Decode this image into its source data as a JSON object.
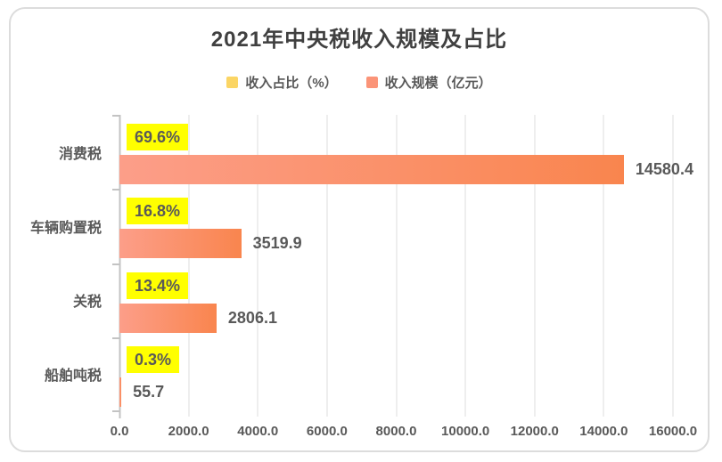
{
  "chart_data": {
    "type": "bar",
    "orientation": "horizontal",
    "title": "2021年中央税收入规模及占比",
    "categories": [
      "消费税",
      "车辆购置税",
      "关税",
      "船舶吨税"
    ],
    "series": [
      {
        "name": "收入占比（%）",
        "values": [
          69.6,
          16.8,
          13.4,
          0.3
        ],
        "labels": [
          "69.6%",
          "16.8%",
          "13.4%",
          "0.3%"
        ],
        "swatch_color": "#fbd564",
        "label_bg": "#ffff00"
      },
      {
        "name": "收入规模（亿元）",
        "values": [
          14580.4,
          3519.9,
          2806.1,
          55.7
        ],
        "labels": [
          "14580.4",
          "3519.9",
          "2806.1",
          "55.7"
        ],
        "swatch_color": "#fb9478",
        "bar_gradient": [
          "#fc9e89",
          "#f9854e"
        ]
      }
    ],
    "xlim": [
      0,
      16000
    ],
    "x_ticks": [
      "0.0",
      "2000.0",
      "4000.0",
      "6000.0",
      "8000.0",
      "10000.0",
      "12000.0",
      "14000.0",
      "16000.0"
    ],
    "grid": true,
    "legend_position": "top"
  },
  "colors": {
    "text": "#595959",
    "title_text": "#404040",
    "gridline": "#dcdcdc",
    "axis_line": "#c3c3c3",
    "card_border": "#dcdcdc",
    "card_background": "#ffffff"
  }
}
